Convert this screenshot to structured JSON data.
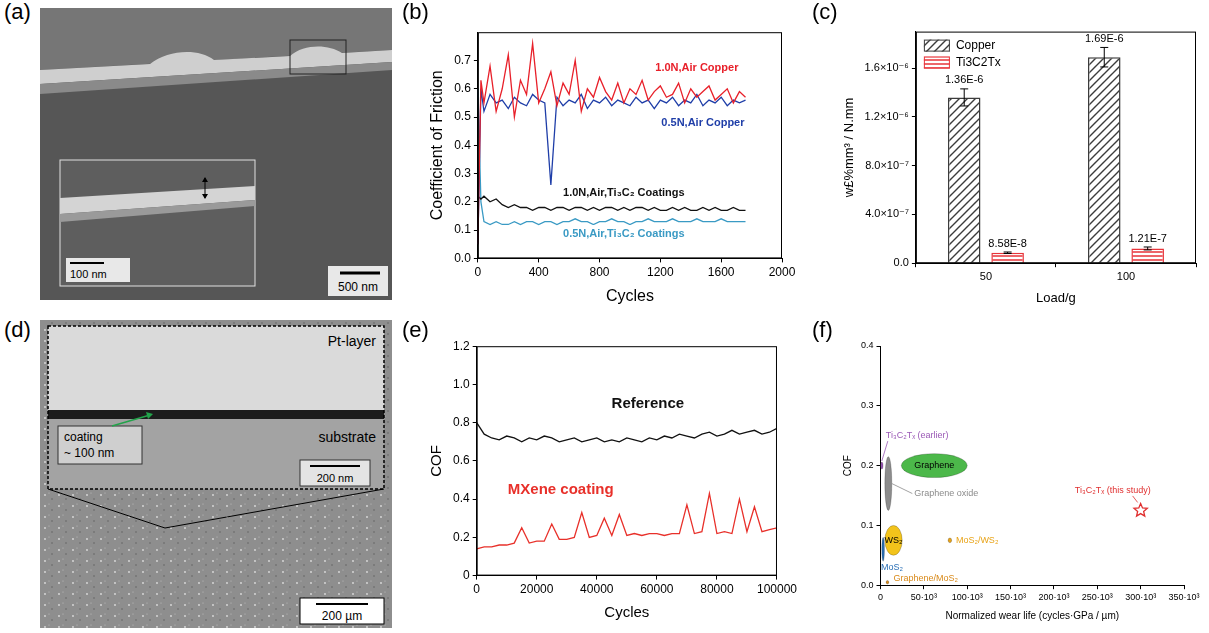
{
  "chart_data": [
    {
      "panel": "(b)",
      "type": "line",
      "x_label": "Cycles",
      "y_label": "Coefficient of Friction",
      "x": [
        0,
        20,
        40,
        80,
        120,
        160,
        200,
        240,
        280,
        320,
        360,
        400,
        440,
        480,
        520,
        560,
        600,
        640,
        680,
        720,
        760,
        800,
        840,
        880,
        920,
        960,
        1000,
        1040,
        1080,
        1120,
        1160,
        1200,
        1240,
        1280,
        1320,
        1360,
        1400,
        1440,
        1480,
        1520,
        1560,
        1600,
        1640,
        1680,
        1720,
        1760
      ],
      "series": [
        {
          "name": "1.0N,Air Copper",
          "color": "#e8202a",
          "values": [
            0.05,
            0.63,
            0.55,
            0.68,
            0.52,
            0.6,
            0.72,
            0.5,
            0.63,
            0.58,
            0.76,
            0.55,
            0.6,
            0.66,
            0.54,
            0.62,
            0.58,
            0.7,
            0.52,
            0.6,
            0.57,
            0.64,
            0.59,
            0.56,
            0.62,
            0.55,
            0.6,
            0.58,
            0.63,
            0.56,
            0.59,
            0.61,
            0.57,
            0.58,
            0.62,
            0.55,
            0.6,
            0.57,
            0.59,
            0.61,
            0.56,
            0.58,
            0.6,
            0.55,
            0.59,
            0.57
          ]
        },
        {
          "name": "0.5N,Air Copper",
          "color": "#1f3ea8",
          "values": [
            0.05,
            0.6,
            0.52,
            0.58,
            0.55,
            0.56,
            0.53,
            0.57,
            0.55,
            0.54,
            0.58,
            0.56,
            0.55,
            0.26,
            0.57,
            0.54,
            0.56,
            0.55,
            0.58,
            0.53,
            0.56,
            0.55,
            0.57,
            0.54,
            0.56,
            0.55,
            0.54,
            0.57,
            0.55,
            0.56,
            0.53,
            0.56,
            0.55,
            0.57,
            0.54,
            0.56,
            0.55,
            0.58,
            0.54,
            0.56,
            0.55,
            0.57,
            0.54,
            0.56,
            0.55,
            0.56
          ]
        },
        {
          "name": "1.0N,Air,Ti₃C₂ Coatings",
          "color": "#111111",
          "values": [
            0.22,
            0.21,
            0.22,
            0.2,
            0.21,
            0.19,
            0.18,
            0.19,
            0.18,
            0.18,
            0.17,
            0.18,
            0.18,
            0.17,
            0.18,
            0.18,
            0.17,
            0.18,
            0.18,
            0.17,
            0.18,
            0.17,
            0.18,
            0.18,
            0.17,
            0.18,
            0.17,
            0.18,
            0.18,
            0.17,
            0.18,
            0.17,
            0.17,
            0.18,
            0.17,
            0.18,
            0.17,
            0.17,
            0.18,
            0.17,
            0.18,
            0.17,
            0.17,
            0.18,
            0.17,
            0.17
          ]
        },
        {
          "name": "0.5N,Air,Ti₃C₂ Coatings",
          "color": "#3a9ac4",
          "values": [
            0.6,
            0.2,
            0.13,
            0.12,
            0.13,
            0.12,
            0.12,
            0.13,
            0.12,
            0.13,
            0.13,
            0.12,
            0.13,
            0.13,
            0.12,
            0.13,
            0.13,
            0.14,
            0.13,
            0.13,
            0.12,
            0.13,
            0.13,
            0.14,
            0.13,
            0.13,
            0.12,
            0.13,
            0.13,
            0.14,
            0.13,
            0.13,
            0.13,
            0.14,
            0.13,
            0.13,
            0.13,
            0.14,
            0.13,
            0.13,
            0.13,
            0.14,
            0.13,
            0.13,
            0.13,
            0.13
          ]
        }
      ],
      "xlim": [
        0,
        2000
      ],
      "xticks": [
        0,
        400,
        800,
        1200,
        1600,
        2000
      ],
      "ylim": [
        0,
        0.8
      ],
      "yticks": [
        {
          "value": 0,
          "label": "0.0"
        },
        0.1,
        0.2,
        0.3,
        0.4,
        0.5,
        0.6,
        0.7
      ],
      "grid": false
    },
    {
      "panel": "(c)",
      "type": "bar",
      "x_label": "Load/g",
      "y_label": "w£%mm³ / N.mm",
      "categories": [
        "50",
        "100"
      ],
      "series": [
        {
          "name": "Copper",
          "color": "#3c3c3c",
          "values": [
            1.36e-06,
            1.69e-06
          ],
          "errors": [
            7e-08,
            8e-08
          ],
          "value_labels": [
            "1.36E-6",
            "1.69E-6"
          ]
        },
        {
          "name": "Ti3C2Tx",
          "color": "#e8343a",
          "values": [
            8.58e-08,
            1.21e-07
          ],
          "errors": [
            6e-09,
            1.2e-08
          ],
          "value_labels": [
            "8.58E-8",
            "1.21E-7"
          ]
        }
      ],
      "ylim": [
        0,
        1.9e-06
      ],
      "yticks": [
        {
          "value": 0,
          "label": "0.0"
        },
        {
          "value": 4e-07,
          "label": "4.0×10⁻⁷"
        },
        {
          "value": 8e-07,
          "label": "8.0×10⁻⁷"
        },
        {
          "value": 1.2e-06,
          "label": "1.2×10⁻⁶"
        },
        {
          "value": 1.6e-06,
          "label": "1.6×10⁻⁶"
        }
      ],
      "grid": false,
      "legend": "top-left",
      "data_labels": true
    },
    {
      "panel": "(e)",
      "type": "line",
      "x_label": "Cycles",
      "y_label": "COF",
      "x": [
        0,
        2500,
        5000,
        7500,
        10000,
        12500,
        15000,
        17500,
        20000,
        22500,
        25000,
        27500,
        30000,
        32500,
        35000,
        37500,
        40000,
        42500,
        45000,
        47500,
        50000,
        52500,
        55000,
        57500,
        60000,
        62500,
        65000,
        67500,
        70000,
        72500,
        75000,
        77500,
        80000,
        82500,
        85000,
        87500,
        90000,
        92500,
        95000,
        97500,
        100000
      ],
      "series": [
        {
          "name": "Reference",
          "color": "#111111",
          "values": [
            0.8,
            0.74,
            0.72,
            0.71,
            0.73,
            0.72,
            0.7,
            0.72,
            0.71,
            0.73,
            0.72,
            0.7,
            0.71,
            0.72,
            0.7,
            0.71,
            0.72,
            0.7,
            0.71,
            0.7,
            0.72,
            0.71,
            0.7,
            0.72,
            0.71,
            0.73,
            0.72,
            0.74,
            0.73,
            0.72,
            0.74,
            0.75,
            0.73,
            0.74,
            0.76,
            0.74,
            0.75,
            0.76,
            0.74,
            0.75,
            0.77
          ]
        },
        {
          "name": "MXene coating",
          "color": "#e8302a",
          "values": [
            0.14,
            0.15,
            0.15,
            0.16,
            0.16,
            0.17,
            0.25,
            0.17,
            0.18,
            0.18,
            0.27,
            0.19,
            0.19,
            0.2,
            0.33,
            0.2,
            0.21,
            0.3,
            0.21,
            0.32,
            0.21,
            0.22,
            0.21,
            0.22,
            0.22,
            0.21,
            0.22,
            0.22,
            0.37,
            0.22,
            0.23,
            0.43,
            0.22,
            0.23,
            0.22,
            0.4,
            0.23,
            0.36,
            0.23,
            0.24,
            0.25
          ]
        }
      ],
      "xlim": [
        0,
        100000
      ],
      "xticks": [
        0,
        20000,
        40000,
        60000,
        80000,
        100000
      ],
      "ylim": [
        0,
        1.2
      ],
      "yticks": [
        0,
        0.2,
        0.4,
        0.6,
        0.8,
        {
          "value": 1,
          "label": "1.0"
        },
        1.2
      ],
      "grid": false
    },
    {
      "panel": "(f)",
      "type": "scatter",
      "x_label": "Normalized wear life (cycles·GPa / µm)",
      "y_label": "COF",
      "series": [
        {
          "name": "Ti₃C₂Tₓ (earlier)",
          "color": "#9b59b6",
          "marker": "ellipse",
          "x": [
            1500
          ],
          "values": [
            0.2
          ],
          "x_err": [
            1000
          ],
          "y_err": [
            0.006
          ]
        },
        {
          "name": "Graphene",
          "color": "#4cb84a",
          "marker": "ellipse",
          "x": [
            62000
          ],
          "values": [
            0.2
          ],
          "x_err": [
            38000
          ],
          "y_err": [
            0.02
          ]
        },
        {
          "name": "Graphene oxide",
          "color": "#8c8c8c",
          "marker": "ellipse",
          "x": [
            9000
          ],
          "values": [
            0.17
          ],
          "x_err": [
            4000
          ],
          "y_err": [
            0.045
          ]
        },
        {
          "name": "WS₂",
          "color": "#f2c31b",
          "marker": "ellipse",
          "x": [
            15000
          ],
          "values": [
            0.075
          ],
          "x_err": [
            10000
          ],
          "y_err": [
            0.025
          ]
        },
        {
          "name": "MoS₂",
          "color": "#2a6fb5",
          "marker": "ellipse",
          "x": [
            3000
          ],
          "values": [
            0.06
          ],
          "x_err": [
            1500
          ],
          "y_err": [
            0.02
          ]
        },
        {
          "name": "Graphene/MoS₂",
          "color": "#d98a1a",
          "marker": "ellipse",
          "x": [
            8000
          ],
          "values": [
            0.005
          ],
          "x_err": [
            1500
          ],
          "y_err": [
            0.003
          ]
        },
        {
          "name": "MoS₂/WS₂",
          "color": "#e8a317",
          "marker": "ellipse",
          "x": [
            80000
          ],
          "values": [
            0.075
          ],
          "x_err": [
            2000
          ],
          "y_err": [
            0.004
          ]
        },
        {
          "name": "Ti₃C₂Tₓ (this study)",
          "color": "#e03030",
          "marker": "star",
          "x": [
            300000
          ],
          "values": [
            0.125
          ]
        }
      ],
      "xlim": [
        0,
        350000
      ],
      "xticks": [
        0,
        {
          "value": 50000,
          "label": "50·10³"
        },
        {
          "value": 100000,
          "label": "100·10³"
        },
        {
          "value": 150000,
          "label": "150·10³"
        },
        {
          "value": 200000,
          "label": "200·10³"
        },
        {
          "value": 250000,
          "label": "250·10³"
        },
        {
          "value": 300000,
          "label": "300·10³"
        },
        {
          "value": 350000,
          "label": "350·10³"
        }
      ],
      "ylim": [
        0,
        0.4
      ],
      "yticks": [
        {
          "value": 0,
          "label": "0.0"
        },
        0.1,
        0.2,
        0.3,
        0.4
      ],
      "grid": false
    }
  ],
  "images": [
    {
      "panel": "(a)",
      "texts": {
        "scale_bar": "500 nm",
        "inset_scale_bar": "100 nm"
      }
    },
    {
      "panel": "(d)",
      "texts": {
        "top_layer": "Pt-layer",
        "coating": [
          "coating",
          "~ 100 nm"
        ],
        "bottom_layer": "substrate",
        "inset_scale_bar": "200 nm",
        "scale_bar": "200 µm"
      }
    }
  ]
}
